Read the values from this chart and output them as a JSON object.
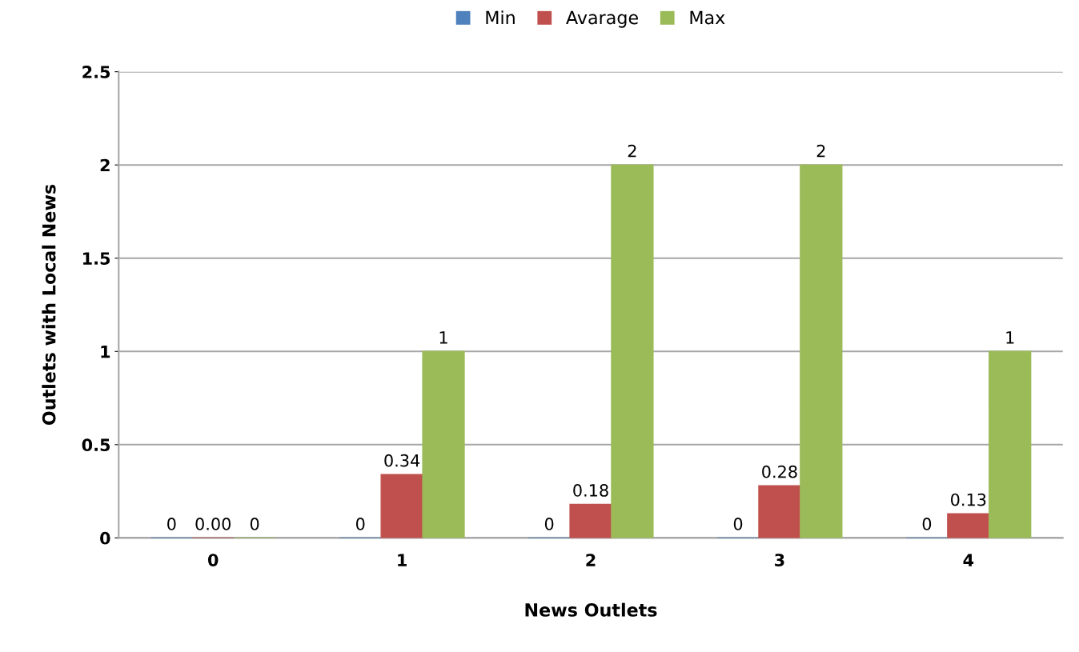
{
  "chart_data": {
    "type": "bar",
    "xlabel": "News Outlets",
    "ylabel": "Outlets with Local News",
    "categories": [
      "0",
      "1",
      "2",
      "3",
      "4"
    ],
    "series": [
      {
        "name": "Min",
        "color": "#4f81bd",
        "values": [
          0,
          0,
          0,
          0,
          0
        ],
        "value_labels": [
          "0",
          "0",
          "0",
          "0",
          "0"
        ]
      },
      {
        "name": "Avarage",
        "color": "#c0504d",
        "values": [
          0,
          0.34,
          0.18,
          0.28,
          0.13
        ],
        "value_labels": [
          "0.00",
          "0.34",
          "0.18",
          "0.28",
          "0.13"
        ]
      },
      {
        "name": "Max",
        "color": "#9bbb59",
        "values": [
          0,
          1,
          2,
          2,
          1
        ],
        "value_labels": [
          "0",
          "1",
          "2",
          "2",
          "1"
        ]
      }
    ],
    "ylim": [
      0,
      2.5
    ],
    "yticks": [
      0,
      0.5,
      1,
      1.5,
      2,
      2.5
    ],
    "grid": "y",
    "legend": "top"
  }
}
